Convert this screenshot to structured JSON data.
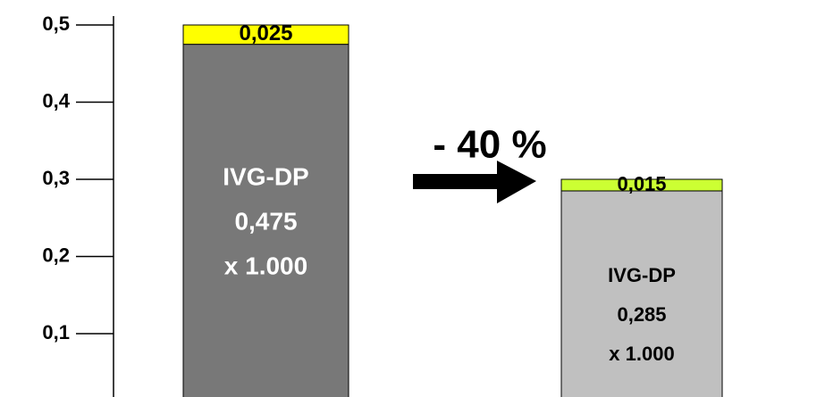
{
  "chart_data": {
    "type": "stacked_bar",
    "categories": [
      null,
      null
    ],
    "ylim": [
      0,
      0.5
    ],
    "yticks": [
      {
        "value": 0.1,
        "label": "0,1"
      },
      {
        "value": 0.2,
        "label": "0,2"
      },
      {
        "value": 0.3,
        "label": "0,3"
      },
      {
        "value": 0.4,
        "label": "0,4"
      },
      {
        "value": 0.5,
        "label": "0,5"
      }
    ],
    "series": [
      {
        "name": "IVG-DP",
        "values": [
          0.475,
          0.285
        ],
        "value_labels": [
          "0,475",
          "0,285"
        ],
        "colors": [
          "#787878",
          "#c0c0c0"
        ],
        "label_colors": [
          "#ffffff",
          "#000000"
        ]
      },
      {
        "values": [
          0.025,
          0.015
        ],
        "value_labels": [
          "0,025",
          "0,015"
        ],
        "colors": [
          "#ffff00",
          "#ccff33"
        ],
        "label_colors": [
          "#000000",
          "#000000"
        ]
      }
    ],
    "unit_label": "x 1.000",
    "annotation": "- 40 %"
  }
}
